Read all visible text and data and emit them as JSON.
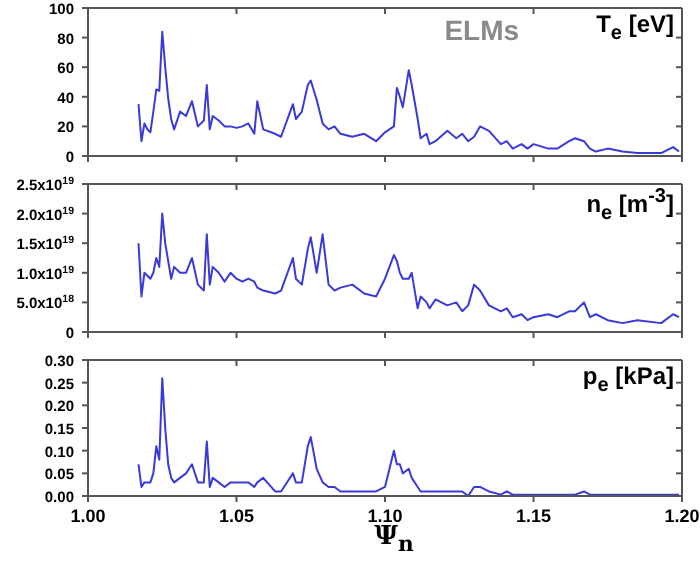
{
  "chart_data": [
    {
      "type": "line",
      "x": [
        1.017,
        1.018,
        1.019,
        1.02,
        1.021,
        1.022,
        1.023,
        1.024,
        1.025,
        1.026,
        1.027,
        1.028,
        1.029,
        1.031,
        1.033,
        1.035,
        1.037,
        1.039,
        1.04,
        1.041,
        1.042,
        1.044,
        1.046,
        1.048,
        1.05,
        1.052,
        1.054,
        1.056,
        1.057,
        1.059,
        1.063,
        1.065,
        1.069,
        1.07,
        1.072,
        1.074,
        1.075,
        1.077,
        1.079,
        1.081,
        1.083,
        1.085,
        1.089,
        1.093,
        1.097,
        1.1,
        1.103,
        1.104,
        1.105,
        1.106,
        1.108,
        1.109,
        1.111,
        1.112,
        1.114,
        1.115,
        1.117,
        1.121,
        1.124,
        1.126,
        1.128,
        1.13,
        1.132,
        1.135,
        1.139,
        1.141,
        1.143,
        1.146,
        1.148,
        1.15,
        1.155,
        1.158,
        1.162,
        1.164,
        1.167,
        1.169,
        1.171,
        1.175,
        1.18,
        1.185,
        1.193,
        1.197,
        1.199
      ],
      "series": [
        {
          "color": "#3a3ad8",
          "values": [
            35,
            10,
            22,
            18,
            16,
            30,
            45,
            44,
            84,
            60,
            39,
            25,
            18,
            30,
            27,
            37,
            20,
            24,
            48,
            18,
            27,
            24,
            20,
            20,
            19,
            20,
            22,
            15,
            37,
            18,
            15,
            13,
            35,
            25,
            30,
            48,
            51,
            38,
            22,
            18,
            20,
            15,
            13,
            15,
            10,
            16,
            20,
            46,
            40,
            33,
            58,
            48,
            25,
            12,
            15,
            8,
            10,
            17,
            12,
            15,
            10,
            13,
            20,
            17,
            8,
            10,
            5,
            8,
            5,
            8,
            5,
            5,
            10,
            12,
            10,
            5,
            3,
            5,
            3,
            2,
            2,
            6,
            3
          ]
        }
      ],
      "xlim": [
        1.0,
        1.2
      ],
      "xticks": [
        1.0,
        1.05,
        1.1,
        1.15,
        1.2
      ],
      "ylim": [
        0,
        100
      ],
      "yticks": [
        0,
        20,
        40,
        60,
        80,
        100
      ],
      "tick_labels": "y",
      "annotations": [
        "T$_{e}$ [eV]",
        "ELMs"
      ]
    },
    {
      "type": "line",
      "x": [
        1.017,
        1.018,
        1.019,
        1.02,
        1.021,
        1.022,
        1.023,
        1.024,
        1.025,
        1.026,
        1.027,
        1.028,
        1.029,
        1.031,
        1.033,
        1.035,
        1.037,
        1.039,
        1.04,
        1.041,
        1.042,
        1.044,
        1.046,
        1.048,
        1.05,
        1.052,
        1.054,
        1.056,
        1.057,
        1.059,
        1.063,
        1.065,
        1.069,
        1.07,
        1.072,
        1.074,
        1.075,
        1.077,
        1.079,
        1.081,
        1.083,
        1.085,
        1.089,
        1.093,
        1.097,
        1.1,
        1.103,
        1.104,
        1.105,
        1.106,
        1.108,
        1.109,
        1.111,
        1.112,
        1.114,
        1.115,
        1.117,
        1.121,
        1.124,
        1.126,
        1.128,
        1.13,
        1.132,
        1.135,
        1.139,
        1.141,
        1.143,
        1.146,
        1.148,
        1.15,
        1.155,
        1.158,
        1.162,
        1.164,
        1.167,
        1.169,
        1.171,
        1.175,
        1.18,
        1.185,
        1.193,
        1.197,
        1.199
      ],
      "series": [
        {
          "color": "#3a3ad8",
          "values": [
            1.5e+19,
            6e+18,
            1e+19,
            9.5e+18,
            9e+18,
            1e+19,
            1.25e+19,
            1.1e+19,
            2e+19,
            1.5e+19,
            1.2e+19,
            9e+18,
            1.1e+19,
            1e+19,
            1e+19,
            1.25e+19,
            8e+18,
            7e+18,
            1.65e+19,
            8e+18,
            1.1e+19,
            1e+19,
            8.5e+18,
            1e+19,
            9e+18,
            8.5e+18,
            9e+18,
            8.5e+18,
            7.5e+18,
            7e+18,
            6.5e+18,
            7e+18,
            1.25e+19,
            9e+18,
            8e+18,
            1.4e+19,
            1.6e+19,
            1e+19,
            1.65e+19,
            8e+18,
            7e+18,
            7.5e+18,
            8e+18,
            6.5e+18,
            6e+18,
            9e+18,
            1.3e+19,
            1.2e+19,
            1e+19,
            9e+18,
            9e+18,
            1e+19,
            4e+18,
            6e+18,
            5e+18,
            4e+18,
            5.5e+18,
            4.5e+18,
            5e+18,
            3.5e+18,
            4.5e+18,
            8e+18,
            7e+18,
            4.5e+18,
            3.5e+18,
            4e+18,
            2.5e+18,
            3e+18,
            2e+18,
            2.5e+18,
            3e+18,
            2.5e+18,
            3.5e+18,
            3.5e+18,
            5e+18,
            2.5e+18,
            3e+18,
            2e+18,
            1.5e+18,
            2e+18,
            1.5e+18,
            3e+18,
            2.5e+18
          ]
        }
      ],
      "xlim": [
        1.0,
        1.2
      ],
      "xticks": [
        1.0,
        1.05,
        1.1,
        1.15,
        1.2
      ],
      "ylim": [
        0,
        2.5e+19
      ],
      "yticks": [
        0,
        {
          "value": 5e+18,
          "label": "5.0x10$^{18}$"
        },
        {
          "value": 1e+19,
          "label": "1.0x10$^{19}$"
        },
        {
          "value": 1.5e+19,
          "label": "1.5x10$^{19}$"
        },
        {
          "value": 2e+19,
          "label": "2.0x10$^{19}$"
        },
        {
          "value": 2.5e+19,
          "label": "2.5x10$^{19}$"
        }
      ],
      "tick_labels": "y",
      "annotations": [
        "n$_{e}$ [m$^{-3}$]"
      ]
    },
    {
      "type": "line",
      "x": [
        1.017,
        1.018,
        1.019,
        1.02,
        1.021,
        1.022,
        1.023,
        1.024,
        1.025,
        1.026,
        1.027,
        1.028,
        1.029,
        1.031,
        1.033,
        1.035,
        1.037,
        1.039,
        1.04,
        1.041,
        1.042,
        1.044,
        1.046,
        1.048,
        1.05,
        1.052,
        1.054,
        1.056,
        1.057,
        1.059,
        1.063,
        1.065,
        1.069,
        1.07,
        1.072,
        1.074,
        1.075,
        1.077,
        1.079,
        1.081,
        1.083,
        1.085,
        1.089,
        1.093,
        1.097,
        1.1,
        1.103,
        1.104,
        1.105,
        1.106,
        1.108,
        1.109,
        1.111,
        1.112,
        1.114,
        1.115,
        1.117,
        1.121,
        1.124,
        1.126,
        1.128,
        1.13,
        1.132,
        1.135,
        1.139,
        1.141,
        1.143,
        1.146,
        1.148,
        1.15,
        1.155,
        1.158,
        1.162,
        1.164,
        1.167,
        1.169,
        1.171,
        1.175,
        1.18,
        1.185,
        1.193,
        1.197,
        1.199
      ],
      "series": [
        {
          "color": "#3a3ad8",
          "values": [
            0.07,
            0.02,
            0.03,
            0.03,
            0.03,
            0.05,
            0.11,
            0.08,
            0.26,
            0.15,
            0.07,
            0.04,
            0.03,
            0.04,
            0.05,
            0.07,
            0.03,
            0.03,
            0.12,
            0.02,
            0.04,
            0.03,
            0.02,
            0.03,
            0.03,
            0.03,
            0.03,
            0.02,
            0.03,
            0.04,
            0.01,
            0.01,
            0.05,
            0.03,
            0.03,
            0.11,
            0.13,
            0.06,
            0.03,
            0.02,
            0.02,
            0.01,
            0.01,
            0.01,
            0.01,
            0.02,
            0.1,
            0.07,
            0.07,
            0.05,
            0.06,
            0.04,
            0.02,
            0.01,
            0.01,
            0.01,
            0.01,
            0.01,
            0.01,
            0.01,
            0.0,
            0.02,
            0.02,
            0.01,
            0.003,
            0.01,
            0.003,
            0.003,
            0.003,
            0.003,
            0.003,
            0.003,
            0.003,
            0.003,
            0.01,
            0.003,
            0.003,
            0.003,
            0.003,
            0.003,
            0.003,
            0.003,
            0.003
          ]
        }
      ],
      "xlim": [
        1.0,
        1.2
      ],
      "xticks": [
        {
          "value": 1.0,
          "label": "1.00"
        },
        {
          "value": 1.05,
          "label": "1.05"
        },
        {
          "value": 1.1,
          "label": "1.10"
        },
        {
          "value": 1.15,
          "label": "1.15"
        },
        {
          "value": 1.2,
          "label": "1.20"
        }
      ],
      "ylim": [
        0,
        0.3
      ],
      "yticks": [
        {
          "value": 0,
          "label": "0.00"
        },
        {
          "value": 0.05,
          "label": "0.05"
        },
        {
          "value": 0.1,
          "label": "0.10"
        },
        {
          "value": 0.15,
          "label": "0.15"
        },
        {
          "value": 0.2,
          "label": "0.20"
        },
        {
          "value": 0.25,
          "label": "0.25"
        },
        {
          "value": 0.3,
          "label": "0.30"
        }
      ],
      "xlabel": "Ψ$_{n}$",
      "annotations": [
        "p$_{e}$ [kPa]"
      ]
    }
  ]
}
